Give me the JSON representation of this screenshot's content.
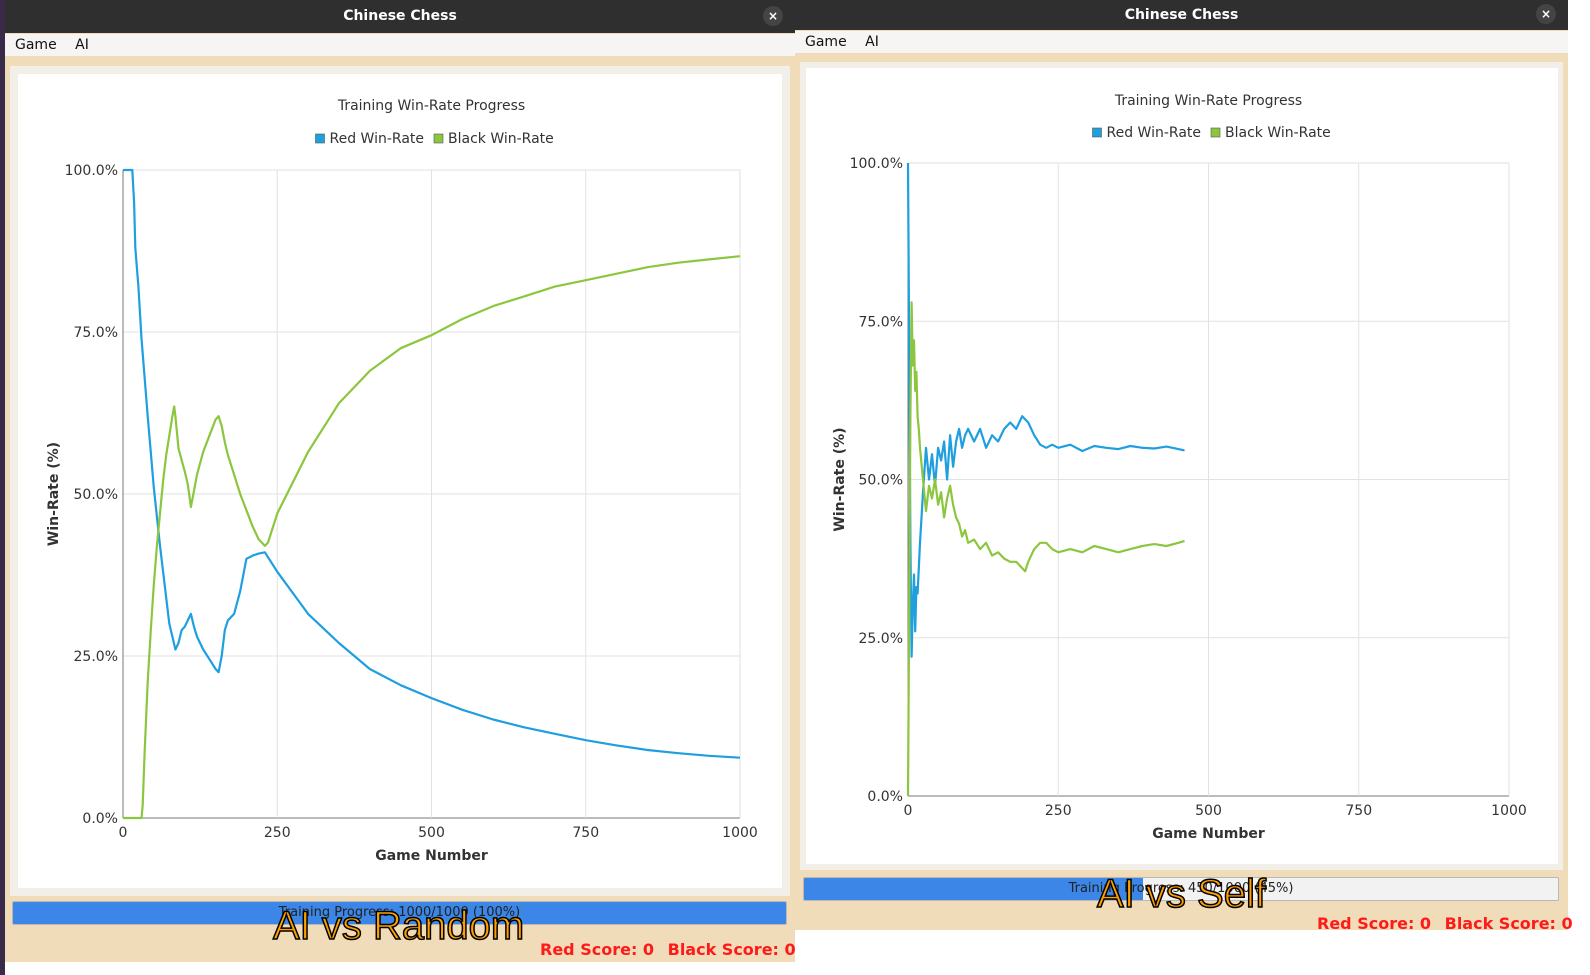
{
  "windows": [
    {
      "title": "Chinese Chess",
      "close_glyph": "×",
      "menu": [
        "Game",
        "AI"
      ],
      "progress": {
        "label": "Training Progress: 1000/1000 (100%)",
        "fraction": 1.0
      },
      "scores": {
        "red": "Red Score: 0",
        "black": "Black Score: 0"
      },
      "caption": "AI vs Random"
    },
    {
      "title": "Chinese Chess",
      "close_glyph": "×",
      "menu": [
        "Game",
        "AI"
      ],
      "progress": {
        "label": "Training Progress: 450/1000 (45%)",
        "fraction": 0.45
      },
      "scores": {
        "red": "Red Score: 0",
        "black": "Black Score: 0"
      },
      "caption": "AI vs Self"
    }
  ],
  "colors": {
    "red_series": "#1f9ee0",
    "black_series": "#8cc63e",
    "score": "#ff1a1a",
    "accent": "#3b86e6"
  },
  "chart_data": [
    {
      "type": "line",
      "title": "Training Win-Rate Progress",
      "xlabel": "Game Number",
      "ylabel": "Win-Rate (%)",
      "xlim": [
        0,
        1000
      ],
      "ylim": [
        0,
        100
      ],
      "xticks": [
        "0",
        "250",
        "500",
        "750",
        "1000"
      ],
      "yticks": [
        "0.0%",
        "25.0%",
        "50.0%",
        "75.0%",
        "100.0%"
      ],
      "grid": true,
      "legend": "top-center",
      "series": [
        {
          "name": "Red Win-Rate",
          "color": "#1f9ee0",
          "x": [
            0,
            15,
            18,
            20,
            25,
            30,
            40,
            50,
            60,
            70,
            75,
            80,
            85,
            90,
            95,
            100,
            110,
            115,
            120,
            130,
            140,
            150,
            155,
            160,
            165,
            170,
            175,
            180,
            190,
            200,
            210,
            220,
            230,
            250,
            300,
            350,
            400,
            450,
            500,
            550,
            600,
            650,
            700,
            750,
            800,
            850,
            900,
            950,
            1000
          ],
          "y": [
            100,
            100,
            95,
            88,
            82,
            74,
            62,
            51,
            42,
            34,
            30,
            28,
            26,
            27,
            29,
            29.5,
            31.5,
            29.5,
            28,
            26,
            24.5,
            23,
            22.5,
            25,
            29,
            30.5,
            31,
            31.5,
            35,
            40,
            40.5,
            40.8,
            41,
            38,
            31.5,
            27,
            23,
            20.5,
            18.5,
            16.7,
            15.2,
            14,
            13,
            12,
            11.2,
            10.5,
            10,
            9.6,
            9.3
          ]
        },
        {
          "name": "Black Win-Rate",
          "color": "#8cc63e",
          "x": [
            0,
            30,
            32,
            35,
            40,
            45,
            50,
            55,
            60,
            65,
            70,
            75,
            80,
            83,
            85,
            90,
            100,
            105,
            110,
            115,
            120,
            130,
            140,
            150,
            155,
            160,
            165,
            170,
            175,
            180,
            190,
            200,
            210,
            220,
            230,
            235,
            250,
            300,
            350,
            400,
            450,
            500,
            550,
            600,
            650,
            700,
            750,
            800,
            850,
            900,
            950,
            1000
          ],
          "y": [
            0,
            0,
            2,
            10,
            21,
            29,
            36,
            42,
            47,
            52,
            56,
            59,
            62,
            63.5,
            62,
            57,
            53.5,
            51.5,
            48,
            50.5,
            53,
            56.5,
            59,
            61.5,
            62,
            60.5,
            58,
            56,
            54.5,
            53,
            50,
            47.5,
            45,
            43,
            42,
            42.5,
            47,
            56.5,
            64,
            69,
            72.5,
            74.5,
            77,
            79,
            80.5,
            82,
            83,
            84,
            85,
            85.7,
            86.2,
            86.7
          ]
        }
      ]
    },
    {
      "type": "line",
      "title": "Training Win-Rate Progress",
      "xlabel": "Game Number",
      "ylabel": "Win-Rate (%)",
      "xlim": [
        0,
        1000
      ],
      "ylim": [
        0,
        100
      ],
      "xticks": [
        "0",
        "250",
        "500",
        "750",
        "1000"
      ],
      "yticks": [
        "0.0%",
        "25.0%",
        "50.0%",
        "75.0%",
        "100.0%"
      ],
      "grid": true,
      "legend": "top-center",
      "series": [
        {
          "name": "Red Win-Rate",
          "color": "#1f9ee0",
          "x": [
            0,
            2,
            4,
            6,
            8,
            10,
            12,
            14,
            16,
            18,
            20,
            25,
            30,
            35,
            40,
            45,
            50,
            55,
            60,
            65,
            70,
            75,
            80,
            85,
            90,
            95,
            100,
            110,
            120,
            130,
            140,
            150,
            160,
            170,
            180,
            190,
            195,
            200,
            210,
            220,
            230,
            240,
            250,
            270,
            290,
            310,
            330,
            350,
            370,
            390,
            410,
            430,
            450,
            460
          ],
          "y": [
            100,
            70,
            40,
            22,
            30,
            35,
            26,
            33,
            32,
            36,
            40,
            48,
            55,
            50,
            54,
            49,
            55,
            53,
            56,
            50,
            57,
            52,
            56,
            58,
            55,
            57,
            58,
            56,
            58,
            55,
            57,
            56,
            58,
            59,
            58,
            60,
            59.5,
            59,
            57,
            55.5,
            55,
            55.5,
            55,
            55.5,
            54.5,
            55.3,
            55,
            54.8,
            55.3,
            55,
            54.9,
            55.2,
            54.8,
            54.6
          ]
        },
        {
          "name": "Black Win-Rate",
          "color": "#8cc63e",
          "x": [
            0,
            2,
            4,
            6,
            8,
            10,
            12,
            14,
            16,
            18,
            20,
            25,
            30,
            35,
            40,
            45,
            50,
            55,
            60,
            65,
            70,
            75,
            80,
            85,
            90,
            95,
            100,
            110,
            120,
            130,
            140,
            150,
            160,
            170,
            180,
            190,
            195,
            200,
            210,
            220,
            230,
            240,
            250,
            270,
            290,
            310,
            330,
            350,
            370,
            390,
            410,
            430,
            450,
            460
          ],
          "y": [
            0,
            30,
            60,
            78,
            68,
            72,
            64,
            67,
            60,
            58,
            55,
            50,
            45,
            49,
            47,
            50,
            46,
            48,
            44,
            47,
            49,
            46,
            44,
            43,
            41,
            42,
            40,
            40.5,
            39,
            40,
            38,
            38.5,
            37.5,
            37,
            37,
            36,
            35.5,
            37,
            39,
            40,
            40,
            39,
            38.5,
            39,
            38.5,
            39.5,
            39,
            38.5,
            39,
            39.5,
            39.8,
            39.5,
            40,
            40.3
          ]
        }
      ]
    }
  ]
}
